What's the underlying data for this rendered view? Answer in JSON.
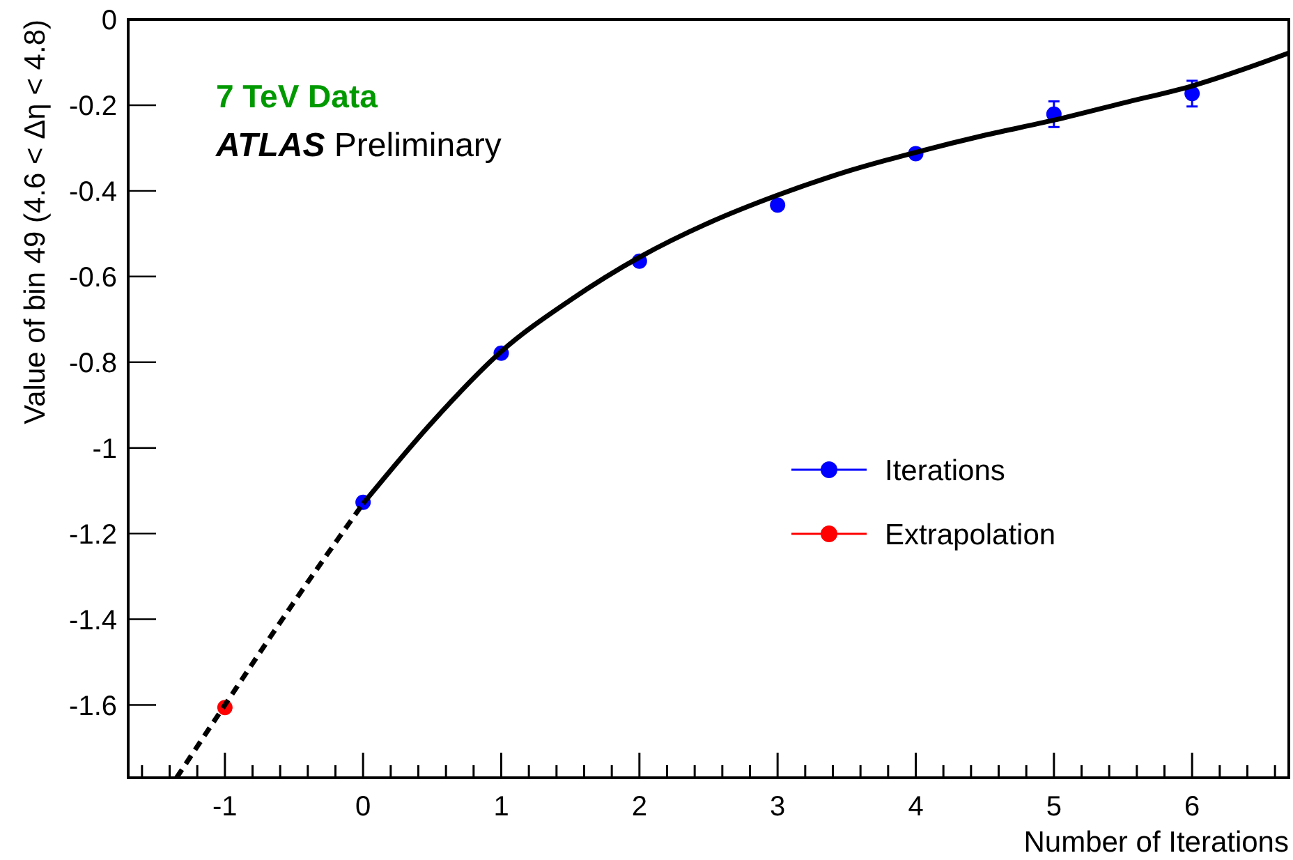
{
  "chart_data": {
    "type": "scatter",
    "xlabel": "Number of Iterations",
    "ylabel": "Value of bin 49 (4.6 < Δη < 4.8)",
    "annotations": [
      "7 TeV Data",
      "ATLAS Preliminary"
    ],
    "xlim": [
      -1.7,
      6.7
    ],
    "ylim": [
      -1.77,
      0
    ],
    "xticks": [
      -1,
      0,
      1,
      2,
      3,
      4,
      5,
      6
    ],
    "yticks": [
      -1.6,
      -1.4,
      -1.2,
      -1,
      -0.8,
      -0.6,
      -0.4,
      -0.2,
      0
    ],
    "legend": "right",
    "marker": "circle",
    "series": [
      {
        "name": "Iterations",
        "color": "#0000ff",
        "x": [
          0,
          1,
          2,
          3,
          4,
          5,
          6
        ],
        "values": [
          -1.127,
          -0.779,
          -0.564,
          -0.433,
          -0.313,
          -0.221,
          -0.173
        ],
        "errors": [
          null,
          null,
          null,
          null,
          null,
          0.03,
          0.03
        ]
      },
      {
        "name": "Extrapolation",
        "color": "#ff0000",
        "x": [
          -1
        ],
        "values": [
          -1.606
        ]
      },
      {
        "type": "line",
        "color": "#000000",
        "line_style": "solid",
        "marker": "none",
        "x": [
          0,
          0.5,
          1,
          1.5,
          2,
          2.5,
          3,
          3.5,
          4,
          4.5,
          5,
          5.5,
          6,
          6.7
        ],
        "values": [
          -1.13,
          -0.94,
          -0.775,
          -0.655,
          -0.555,
          -0.475,
          -0.41,
          -0.355,
          -0.31,
          -0.27,
          -0.235,
          -0.195,
          -0.155,
          -0.078
        ]
      },
      {
        "type": "line",
        "color": "#000000",
        "line_style": "dashed",
        "marker": "none",
        "x": [
          -1.35,
          -1,
          -0.5,
          0
        ],
        "values": [
          -1.77,
          -1.6,
          -1.36,
          -1.13
        ]
      }
    ]
  }
}
